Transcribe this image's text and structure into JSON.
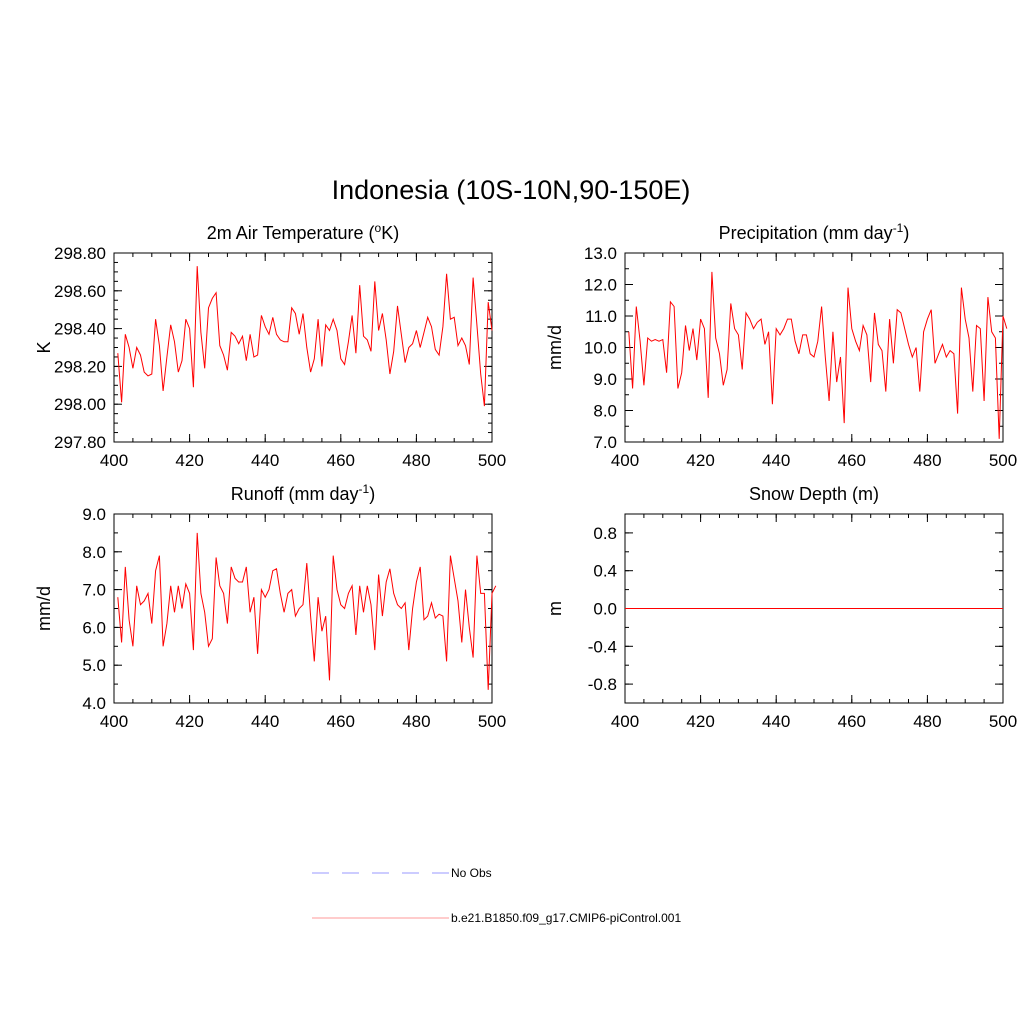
{
  "figure": {
    "title": "Indonesia (10S-10N,90-150E)"
  },
  "chart_data": [
    {
      "id": "temp",
      "type": "line",
      "title_main": "2m Air Temperature (",
      "title_sup": "o",
      "title_tail": "K)",
      "ylabel": "K",
      "xlabel": "",
      "xlim": [
        400,
        500
      ],
      "ylim": [
        297.8,
        298.8
      ],
      "xticks": [
        400,
        420,
        440,
        460,
        480,
        500
      ],
      "yticks": [
        297.8,
        298.0,
        298.2,
        298.4,
        298.6,
        298.8
      ],
      "ytick_labels": [
        "297.80",
        "298.00",
        "298.20",
        "298.40",
        "298.60",
        "298.80"
      ],
      "xminor": 5,
      "yminor": 0.05,
      "color": "#ff0000",
      "series": [
        {
          "name": "b.e21.B1850.f09_g17.CMIP6-piControl.001",
          "x_start": 401,
          "x_step": 1,
          "values": [
            298.27,
            298.01,
            298.37,
            298.3,
            298.19,
            298.3,
            298.26,
            298.17,
            298.15,
            298.16,
            298.45,
            298.31,
            298.07,
            298.25,
            298.42,
            298.33,
            298.17,
            298.23,
            298.45,
            298.4,
            298.09,
            298.73,
            298.38,
            298.19,
            298.51,
            298.56,
            298.59,
            298.31,
            298.26,
            298.18,
            298.38,
            298.36,
            298.32,
            298.36,
            298.23,
            298.37,
            298.25,
            298.26,
            298.47,
            298.41,
            298.37,
            298.46,
            298.37,
            298.34,
            298.33,
            298.33,
            298.51,
            298.48,
            298.37,
            298.48,
            298.3,
            298.17,
            298.24,
            298.45,
            298.2,
            298.42,
            298.39,
            298.45,
            298.39,
            298.24,
            298.21,
            298.33,
            298.47,
            298.27,
            298.63,
            298.36,
            298.34,
            298.28,
            298.65,
            298.39,
            298.48,
            298.34,
            298.16,
            298.28,
            298.52,
            298.37,
            298.22,
            298.3,
            298.32,
            298.39,
            298.3,
            298.38,
            298.46,
            298.41,
            298.29,
            298.26,
            298.41,
            298.69,
            298.45,
            298.46,
            298.31,
            298.35,
            298.31,
            298.21,
            298.67,
            298.42,
            298.16,
            297.99,
            298.54,
            298.39
          ]
        }
      ]
    },
    {
      "id": "precip",
      "type": "line",
      "title_main": "Precipitation (mm day",
      "title_sup": "-1",
      "title_tail": ")",
      "ylabel": "mm/d",
      "xlabel": "",
      "xlim": [
        400,
        500
      ],
      "ylim": [
        7.0,
        13.0
      ],
      "xticks": [
        400,
        420,
        440,
        460,
        480,
        500
      ],
      "yticks": [
        7,
        8,
        9,
        10,
        11,
        12,
        13
      ],
      "ytick_labels": [
        "7.0",
        "8.0",
        "9.0",
        "10.0",
        "11.0",
        "12.0",
        "13.0"
      ],
      "xminor": 5,
      "yminor": 0.5,
      "color": "#ff0000",
      "series": [
        {
          "name": "b.e21.B1850.f09_g17.CMIP6-piControl.001",
          "x_start": 401,
          "x_step": 1,
          "values": [
            10.5,
            8.7,
            11.3,
            10.2,
            8.8,
            10.3,
            10.2,
            10.25,
            10.2,
            10.25,
            9.2,
            11.45,
            11.3,
            8.7,
            9.2,
            10.7,
            9.9,
            10.6,
            9.6,
            10.9,
            10.6,
            8.4,
            12.4,
            10.3,
            9.8,
            8.8,
            9.3,
            11.4,
            10.6,
            10.4,
            9.3,
            11.1,
            10.9,
            10.6,
            10.8,
            10.9,
            10.1,
            10.5,
            8.2,
            10.6,
            10.4,
            10.6,
            10.9,
            10.9,
            10.2,
            9.8,
            10.4,
            10.4,
            9.8,
            9.7,
            10.2,
            11.3,
            9.7,
            8.3,
            10.5,
            8.9,
            9.7,
            7.6,
            11.9,
            10.6,
            10.2,
            9.9,
            10.7,
            10.4,
            8.9,
            11.1,
            10.1,
            9.9,
            8.6,
            10.9,
            9.5,
            11.2,
            11.1,
            10.6,
            10.1,
            9.7,
            10.0,
            8.6,
            10.5,
            10.9,
            11.2,
            9.5,
            9.8,
            10.1,
            9.7,
            9.9,
            9.8,
            7.9,
            11.9,
            10.9,
            10.3,
            8.6,
            10.7,
            10.6,
            8.3,
            11.6,
            10.5,
            10.3,
            7.1,
            11.0,
            10.6
          ]
        }
      ]
    },
    {
      "id": "runoff",
      "type": "line",
      "title_main": "Runoff (mm day",
      "title_sup": "-1",
      "title_tail": ")",
      "ylabel": "mm/d",
      "xlabel": "",
      "xlim": [
        400,
        500
      ],
      "ylim": [
        4.0,
        9.0
      ],
      "xticks": [
        400,
        420,
        440,
        460,
        480,
        500
      ],
      "yticks": [
        4,
        5,
        6,
        7,
        8,
        9
      ],
      "ytick_labels": [
        "4.0",
        "5.0",
        "6.0",
        "7.0",
        "8.0",
        "9.0"
      ],
      "xminor": 5,
      "yminor": 0.5,
      "color": "#ff0000",
      "series": [
        {
          "name": "b.e21.B1850.f09_g17.CMIP6-piControl.001",
          "x_start": 401,
          "x_step": 1,
          "values": [
            6.8,
            5.6,
            7.6,
            6.2,
            5.5,
            7.1,
            6.6,
            6.7,
            6.9,
            6.1,
            7.5,
            7.9,
            5.5,
            6.1,
            7.1,
            6.4,
            7.1,
            6.5,
            7.15,
            6.9,
            5.4,
            8.5,
            6.9,
            6.4,
            5.5,
            5.7,
            7.85,
            7.1,
            6.9,
            6.1,
            7.6,
            7.3,
            7.2,
            7.2,
            7.6,
            6.4,
            6.8,
            5.3,
            7.0,
            6.8,
            7.0,
            7.5,
            7.55,
            6.9,
            6.4,
            6.9,
            7.0,
            6.3,
            6.5,
            6.6,
            7.7,
            6.3,
            5.1,
            6.8,
            5.9,
            6.3,
            4.6,
            7.9,
            7.0,
            6.6,
            6.5,
            6.9,
            7.1,
            5.8,
            7.1,
            6.4,
            7.1,
            6.6,
            5.4,
            7.4,
            6.3,
            7.2,
            7.55,
            6.9,
            6.6,
            6.5,
            6.65,
            5.4,
            6.5,
            7.2,
            7.6,
            6.2,
            6.3,
            6.65,
            6.25,
            6.35,
            6.3,
            5.1,
            7.9,
            7.3,
            6.7,
            5.6,
            7.0,
            6.0,
            5.2,
            7.9,
            6.9,
            6.9,
            4.35,
            6.9,
            7.1
          ]
        }
      ]
    },
    {
      "id": "snow",
      "type": "line",
      "title_main": "Snow Depth (m)",
      "title_sup": "",
      "title_tail": "",
      "ylabel": "m",
      "xlabel": "",
      "xlim": [
        400,
        500
      ],
      "ylim": [
        -1.0,
        1.0
      ],
      "xticks": [
        400,
        420,
        440,
        460,
        480,
        500
      ],
      "yticks": [
        -0.8,
        -0.4,
        0.0,
        0.4,
        0.8
      ],
      "ytick_labels": [
        "-0.8",
        "-0.4",
        "0.0",
        "0.4",
        "0.8"
      ],
      "xminor": 5,
      "yminor": 0.2,
      "color": "#ff0000",
      "series": [
        {
          "name": "b.e21.B1850.f09_g17.CMIP6-piControl.001",
          "x_start": 401,
          "x_step": 1,
          "values": "constant-0"
        }
      ]
    }
  ],
  "legend": {
    "items": [
      {
        "label": "No Obs",
        "style": "dashed",
        "color": "#9999ff"
      },
      {
        "label": "b.e21.B1850.f09_g17.CMIP6-piControl.001",
        "style": "solid",
        "color": "#ff9999"
      }
    ]
  }
}
